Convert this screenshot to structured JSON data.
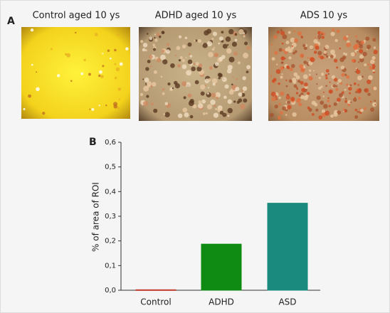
{
  "panel_a_label": "A",
  "image_captions": [
    "Control aged 10 ys",
    "ADHD aged 10 ys",
    "ADS 10 ys"
  ],
  "chart_data": {
    "type": "bar",
    "panel_label": "B",
    "ylabel": "% of area of ROI",
    "categories": [
      "Control",
      "ADHD",
      "ASD"
    ],
    "values": [
      0.002,
      0.187,
      0.353
    ],
    "colors": [
      "#c0392b",
      "#0f8a12",
      "#1a8a7e"
    ],
    "ylim": [
      0,
      0.6
    ],
    "yticks": [
      {
        "value": 0,
        "label": "0,0"
      },
      {
        "value": 0.1,
        "label": "0,1"
      },
      {
        "value": 0.2,
        "label": "0,2"
      },
      {
        "value": 0.3,
        "label": "0,3"
      },
      {
        "value": 0.4,
        "label": "0,4"
      },
      {
        "value": 0.5,
        "label": "0,5"
      },
      {
        "value": 0.6,
        "label": "0,6"
      }
    ]
  }
}
